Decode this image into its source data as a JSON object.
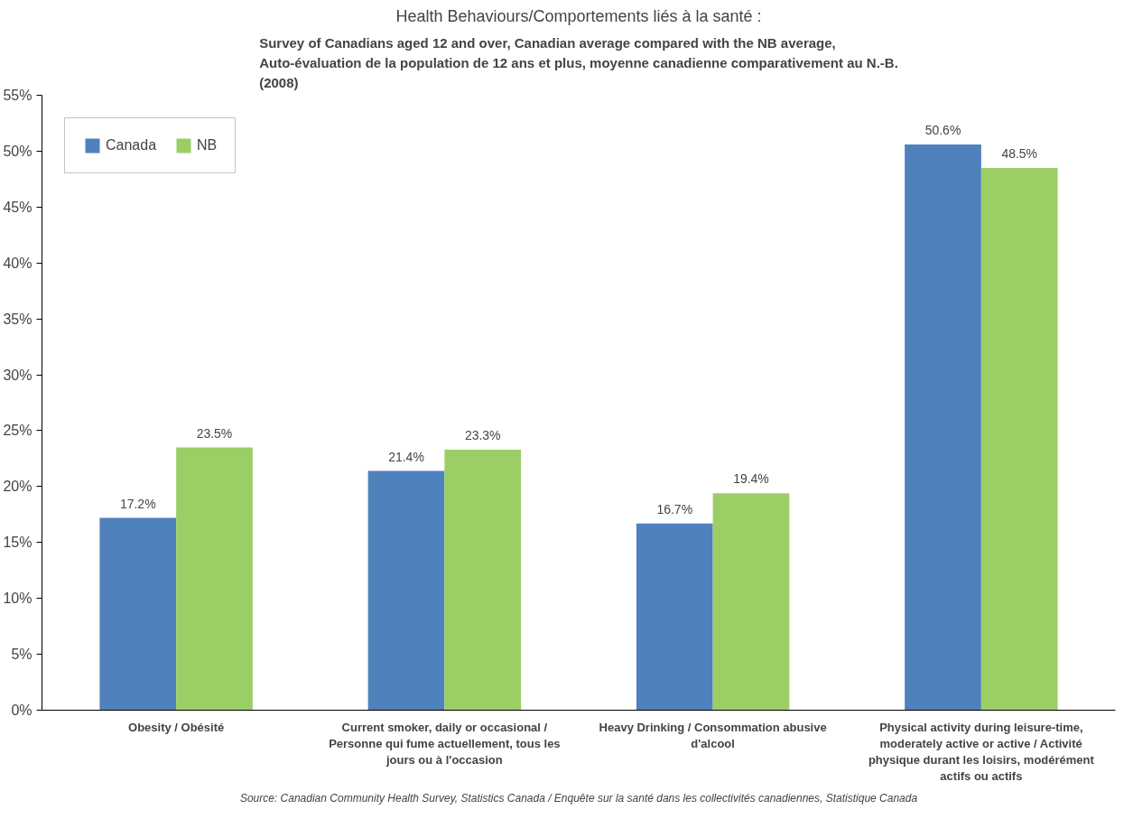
{
  "chart_data": {
    "type": "bar",
    "title": "Health Behaviours/Comportements liés à la santé :",
    "subtitle": "Survey of Canadians aged 12 and over, Canadian average compared with the NB average,\nAuto-évaluation de la population de 12 ans et plus, moyenne canadienne comparativement au N.-B.\n(2008)",
    "categories": [
      "Obesity / Obésité",
      "Current smoker, daily or occasional / Personne qui fume actuellement, tous les jours ou à l'occasion",
      "Heavy Drinking / Consommation abusive d'alcool",
      "Physical activity during leisure-time, moderately active or active / Activité physique durant les loisirs, modérément actifs ou actifs"
    ],
    "series": [
      {
        "name": "Canada",
        "color": "#4f81bd",
        "values": [
          17.2,
          21.4,
          16.7,
          50.6
        ],
        "value_labels": [
          "17.2%",
          "21.4%",
          "16.7%",
          "50.6%"
        ]
      },
      {
        "name": "NB",
        "color": "#9bcf65",
        "values": [
          23.5,
          23.3,
          19.4,
          48.5
        ],
        "value_labels": [
          "23.5%",
          "23.3%",
          "19.4%",
          "48.5%"
        ]
      }
    ],
    "ylim": [
      0,
      55
    ],
    "yticks": [
      {
        "value": 0,
        "label": "0%"
      },
      {
        "value": 5,
        "label": "5%"
      },
      {
        "value": 10,
        "label": "10%"
      },
      {
        "value": 15,
        "label": "15%"
      },
      {
        "value": 20,
        "label": "20%"
      },
      {
        "value": 25,
        "label": "25%"
      },
      {
        "value": 30,
        "label": "30%"
      },
      {
        "value": 35,
        "label": "35%"
      },
      {
        "value": 40,
        "label": "40%"
      },
      {
        "value": 45,
        "label": "45%"
      },
      {
        "value": 50,
        "label": "50%"
      },
      {
        "value": 55,
        "label": "55%"
      }
    ],
    "grid": false,
    "legend": "top left",
    "annotations": [
      "Source: Canadian Community Health Survey, Statistics Canada / Enquête sur la santé dans les collectivités canadiennes, Statistique Canada"
    ]
  }
}
